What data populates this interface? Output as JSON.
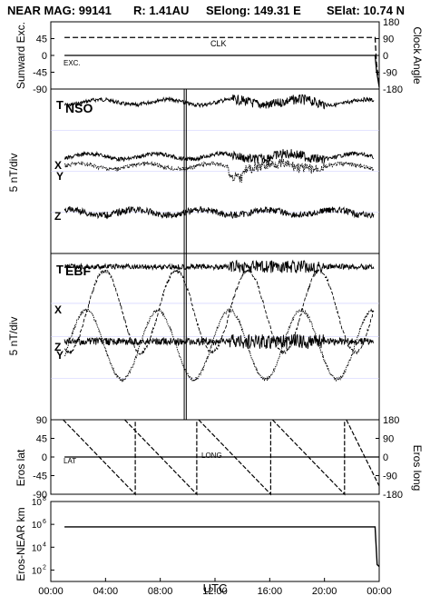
{
  "header": {
    "mission": "NEAR MAG:",
    "date": "99141",
    "range": "R: 1.41AU",
    "selong": "SElong: 149.31 E",
    "selat": "SElat: 10.74 N"
  },
  "panels": {
    "excursion": {
      "ylabel": "Sunward Exc.",
      "ylabel_right": "Clock Angle",
      "ticks": [
        "45",
        "0",
        "-45",
        "-90"
      ],
      "ticks_right": [
        "180",
        "90",
        "0",
        "-90",
        "-180"
      ],
      "label_clk": "CLK",
      "label_exc": "EXC."
    },
    "nso": {
      "ylabel": "5 nT/div",
      "label_t": "T",
      "label_title": "NSO",
      "label_x": "X",
      "label_y": "Y",
      "label_z": "Z"
    },
    "ebf": {
      "ylabel": "5 nT/div",
      "label_t": "T",
      "label_title": "EBF",
      "label_x": "X",
      "label_z": "Z",
      "label_y": "Y"
    },
    "eros": {
      "ylabel": "Eros lat",
      "ylabel_right": "Eros long",
      "ticks": [
        "90",
        "45",
        "0",
        "-45",
        "-90"
      ],
      "ticks_right": [
        "180",
        "90",
        "0",
        "-90",
        "-180"
      ],
      "label_lat": "LAT",
      "label_long": "LONG"
    },
    "distance": {
      "ylabel": "Eros-NEAR km",
      "ticks": [
        "10",
        "10",
        "10",
        "10"
      ],
      "exps": [
        "8",
        "6",
        "4",
        "2"
      ]
    }
  },
  "xaxis": {
    "ticks": [
      "00:00",
      "04:00",
      "08:00",
      "12:00",
      "16:00",
      "20:00",
      "00:00"
    ],
    "label": "UTC"
  },
  "chart_data": [
    {
      "type": "line",
      "panel": "excursion",
      "xlabel": "UTC",
      "ylabel": "Sunward Exc.",
      "ylim": [
        -90,
        90
      ],
      "y2label": "Clock Angle",
      "y2lim": [
        -180,
        180
      ],
      "series": [
        {
          "name": "CLK",
          "style": "dashed",
          "x_hours": [
            1.0,
            23.7,
            23.8,
            24.0
          ],
          "values": [
            48,
            48,
            -20,
            -80
          ]
        },
        {
          "name": "EXC.",
          "style": "solid",
          "x_hours": [
            1.0,
            23.7,
            23.8,
            24.0
          ],
          "values": [
            0,
            0,
            -40,
            -85
          ]
        }
      ]
    },
    {
      "type": "line",
      "panel": "nso",
      "ylabel": "5 nT/div",
      "series": [
        {
          "name": "T",
          "base_frac": 0.08,
          "amp_quiet": 0.012,
          "amp_active": 0.03
        },
        {
          "name": "X",
          "base_frac": 0.41,
          "amp_quiet": 0.012,
          "amp_active": 0.03
        },
        {
          "name": "Y",
          "base_frac": 0.47,
          "amp_quiet": 0.012,
          "amp_active": 0.03
        },
        {
          "name": "Z",
          "base_frac": 0.75,
          "amp_quiet": 0.02,
          "amp_active": 0.02
        }
      ],
      "active_interval_hours": [
        13.3,
        20.0
      ]
    },
    {
      "type": "line",
      "panel": "ebf",
      "ylabel": "5 nT/div",
      "series": [
        {
          "name": "T",
          "base_frac": 0.08
        },
        {
          "name": "X",
          "base_frac": 0.35
        },
        {
          "name": "Z",
          "base_frac": 0.53
        },
        {
          "name": "Y",
          "base_frac": 0.55
        }
      ]
    },
    {
      "type": "line",
      "panel": "eros",
      "ylabel": "Eros lat",
      "ylim": [
        -90,
        90
      ],
      "y2label": "Eros long",
      "y2lim": [
        -180,
        180
      ],
      "series": [
        {
          "name": "LAT",
          "style": "solid",
          "x_hours": [
            1.0,
            24.0
          ],
          "values": [
            0,
            0
          ]
        },
        {
          "name": "LONG",
          "style": "dashed",
          "sawtooth_resets_hours": [
            0.9,
            5.4,
            10.8,
            16.2,
            21.6
          ],
          "period_hours": 5.27
        }
      ]
    },
    {
      "type": "line",
      "panel": "distance",
      "ylabel": "Eros-NEAR km",
      "yscale": "log",
      "ylim": [
        10,
        100000000
      ],
      "series": [
        {
          "name": "distance",
          "style": "solid",
          "x_hours": [
            1.0,
            23.7,
            23.85,
            24.0
          ],
          "values": [
            600000,
            600000,
            300,
            200
          ]
        }
      ]
    }
  ]
}
